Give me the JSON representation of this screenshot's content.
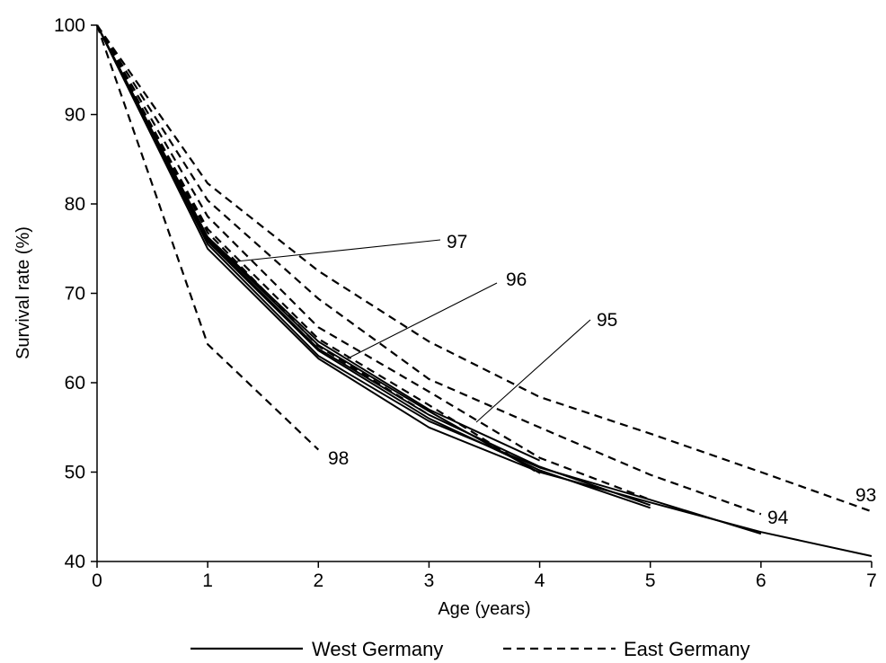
{
  "chart_data": {
    "type": "line",
    "title": "",
    "xlabel": "Age (years)",
    "ylabel": "Survival rate (%)",
    "xlim": [
      0,
      7
    ],
    "ylim": [
      40,
      100
    ],
    "xticks": [
      0,
      1,
      2,
      3,
      4,
      5,
      6,
      7
    ],
    "yticks": [
      40,
      50,
      60,
      70,
      80,
      90,
      100
    ],
    "grid": false,
    "legend_position": "bottom",
    "legend": [
      {
        "label": "West Germany",
        "style": "solid"
      },
      {
        "label": "East Germany",
        "style": "dashed"
      }
    ],
    "series": [
      {
        "group": "West Germany",
        "style": "solid",
        "x": [
          0,
          1,
          2,
          3,
          4,
          5,
          6,
          7
        ],
        "y": [
          100,
          75.0,
          62.7,
          55.0,
          50.0,
          46.6,
          43.3,
          40.6
        ]
      },
      {
        "group": "West Germany",
        "style": "solid",
        "x": [
          0,
          1,
          2,
          3,
          4,
          5,
          6
        ],
        "y": [
          100,
          75.5,
          63.0,
          55.7,
          50.5,
          46.9,
          43.1
        ]
      },
      {
        "group": "West Germany",
        "style": "solid",
        "x": [
          0,
          1,
          2,
          3,
          4,
          5
        ],
        "y": [
          100,
          75.8,
          63.6,
          56.0,
          50.2,
          46.0
        ]
      },
      {
        "group": "West Germany",
        "style": "solid",
        "x": [
          0,
          1,
          2,
          3,
          4,
          5
        ],
        "y": [
          100,
          76.0,
          63.8,
          56.4,
          50.6,
          46.3
        ]
      },
      {
        "group": "West Germany",
        "style": "solid",
        "x": [
          0,
          1,
          2,
          3,
          4
        ],
        "y": [
          100,
          76.2,
          64.2,
          56.8,
          49.9
        ]
      },
      {
        "group": "West Germany",
        "style": "solid",
        "x": [
          0,
          1,
          2,
          3,
          4
        ],
        "y": [
          100,
          76.3,
          64.6,
          57.0,
          51.3
        ]
      },
      {
        "group": "East Germany",
        "style": "dashed",
        "label": "93",
        "x": [
          0,
          1,
          2,
          3,
          4,
          5,
          6,
          7
        ],
        "y": [
          100,
          82.3,
          72.5,
          64.6,
          58.4,
          54.3,
          50.0,
          45.6
        ]
      },
      {
        "group": "East Germany",
        "style": "dashed",
        "label": "94",
        "x": [
          0,
          1,
          2,
          3,
          4,
          5,
          6
        ],
        "y": [
          100,
          80.4,
          69.4,
          60.4,
          55.0,
          49.7,
          45.3
        ]
      },
      {
        "group": "East Germany",
        "style": "dashed",
        "label": "95",
        "x": [
          0,
          1,
          2,
          3,
          4,
          5
        ],
        "y": [
          100,
          78.6,
          66.2,
          59.0,
          51.6,
          46.9
        ]
      },
      {
        "group": "East Germany",
        "style": "dashed",
        "label": "96",
        "x": [
          0,
          1,
          2,
          3,
          4
        ],
        "y": [
          100,
          77.2,
          64.9,
          57.5,
          49.8
        ]
      },
      {
        "group": "East Germany",
        "style": "dashed",
        "label": "97",
        "x": [
          0,
          1,
          2,
          3
        ],
        "y": [
          100,
          76.8,
          64.1,
          56.4
        ]
      },
      {
        "group": "East Germany",
        "style": "dashed",
        "label": "98",
        "x": [
          0,
          1,
          2
        ],
        "y": [
          100,
          64.3,
          52.5
        ]
      }
    ],
    "annotations": [
      {
        "text": "97",
        "leader": true
      },
      {
        "text": "96",
        "leader": true
      },
      {
        "text": "95",
        "leader": true
      },
      {
        "text": "98",
        "leader": false
      },
      {
        "text": "94",
        "leader": false
      },
      {
        "text": "93",
        "leader": false
      }
    ]
  }
}
